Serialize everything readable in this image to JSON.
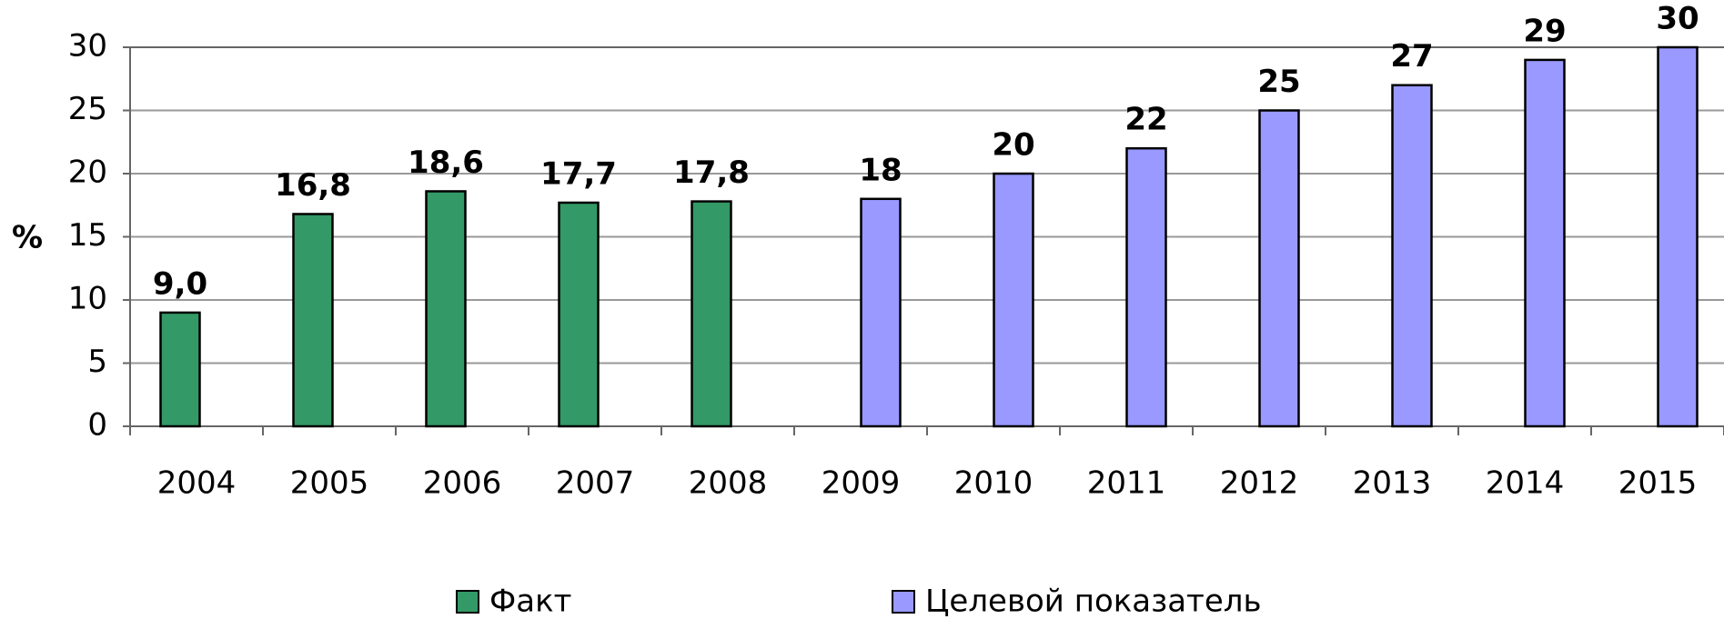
{
  "chart_data": {
    "type": "bar",
    "y_label": "%",
    "categories": [
      "2004",
      "2005",
      "2006",
      "2007",
      "2008",
      "2009",
      "2010",
      "2011",
      "2012",
      "2013",
      "2014",
      "2015"
    ],
    "series": [
      {
        "name": "Факт",
        "color": "#339966",
        "values": [
          9.0,
          16.8,
          18.6,
          17.7,
          17.8,
          null,
          null,
          null,
          null,
          null,
          null,
          null
        ],
        "value_labels": [
          "9,0",
          "16,8",
          "18,6",
          "17,7",
          "17,8",
          null,
          null,
          null,
          null,
          null,
          null,
          null
        ]
      },
      {
        "name": "Целевой показатель",
        "color": "#9999ff",
        "values": [
          null,
          null,
          null,
          null,
          null,
          18,
          20,
          22,
          25,
          27,
          29,
          30
        ],
        "value_labels": [
          null,
          null,
          null,
          null,
          null,
          "18",
          "20",
          "22",
          "25",
          "27",
          "29",
          "30"
        ]
      }
    ],
    "ylim": [
      0,
      30
    ],
    "yticks": [
      0,
      5,
      10,
      15,
      20,
      25,
      30
    ],
    "grid": true,
    "legend": "bottom"
  }
}
